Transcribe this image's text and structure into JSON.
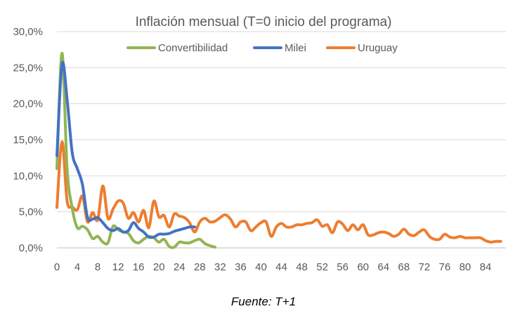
{
  "chart_data": {
    "type": "line",
    "title": "Inflación mensual (T=0 inicio del programa)",
    "xlabel": "",
    "ylabel": "",
    "xlim": [
      0,
      88
    ],
    "ylim": [
      0,
      30
    ],
    "x_ticks": [
      0,
      4,
      8,
      12,
      16,
      20,
      24,
      28,
      32,
      36,
      40,
      44,
      48,
      52,
      56,
      60,
      64,
      68,
      72,
      76,
      80,
      84
    ],
    "y_ticks": [
      {
        "value": 0,
        "label": "0,0%"
      },
      {
        "value": 5,
        "label": "5,0%"
      },
      {
        "value": 10,
        "label": "10,0%"
      },
      {
        "value": 15,
        "label": "15,0%"
      },
      {
        "value": 20,
        "label": "20,0%"
      },
      {
        "value": 25,
        "label": "25,0%"
      },
      {
        "value": 30,
        "label": "30,0%"
      }
    ],
    "grid": "horizontal",
    "legend": "top",
    "series": [
      {
        "name": "Convertibilidad",
        "color": "#92B553",
        "x": [
          0,
          1,
          2,
          3,
          4,
          5,
          6,
          7,
          8,
          9,
          10,
          11,
          12,
          13,
          14,
          15,
          16,
          17,
          18,
          19,
          20,
          21,
          22,
          23,
          24,
          25,
          26,
          27,
          28,
          29,
          30,
          31
        ],
        "y": [
          11.0,
          27.0,
          11.0,
          5.5,
          2.8,
          3.0,
          2.5,
          1.3,
          1.6,
          0.8,
          0.7,
          3.0,
          2.5,
          2.2,
          2.0,
          1.0,
          0.7,
          1.2,
          1.6,
          1.4,
          0.8,
          1.2,
          0.2,
          0.1,
          0.8,
          0.7,
          0.7,
          1.0,
          1.2,
          0.6,
          0.3,
          0.1
        ]
      },
      {
        "name": "Milei",
        "color": "#4472C4",
        "x": [
          0,
          1,
          2,
          3,
          4,
          5,
          6,
          7,
          8,
          9,
          10,
          11,
          12,
          13,
          14,
          15,
          16,
          17,
          18,
          19,
          20,
          21,
          22,
          23,
          24,
          25,
          26,
          27
        ],
        "y": [
          12.8,
          25.5,
          20.6,
          13.2,
          11.0,
          8.8,
          4.2,
          4.0,
          4.2,
          3.5,
          2.7,
          2.4,
          2.7,
          2.2,
          2.4,
          3.5,
          2.7,
          2.2,
          1.5,
          1.5,
          1.9,
          1.9,
          2.0,
          2.3,
          2.5,
          2.7,
          2.9,
          2.9
        ]
      },
      {
        "name": "Uruguay",
        "color": "#ED7D31",
        "x": [
          0,
          1,
          2,
          3,
          4,
          5,
          6,
          7,
          8,
          9,
          10,
          11,
          12,
          13,
          14,
          15,
          16,
          17,
          18,
          19,
          20,
          21,
          22,
          23,
          24,
          25,
          26,
          27,
          28,
          29,
          30,
          31,
          32,
          33,
          34,
          35,
          36,
          37,
          38,
          39,
          40,
          41,
          42,
          43,
          44,
          45,
          46,
          47,
          48,
          49,
          50,
          51,
          52,
          53,
          54,
          55,
          56,
          57,
          58,
          59,
          60,
          61,
          62,
          63,
          64,
          65,
          66,
          67,
          68,
          69,
          70,
          71,
          72,
          73,
          74,
          75,
          76,
          77,
          78,
          79,
          80,
          81,
          82,
          83,
          84,
          85,
          86,
          87
        ],
        "y": [
          5.6,
          14.7,
          6.5,
          5.7,
          5.3,
          7.2,
          3.6,
          4.9,
          3.9,
          8.6,
          4.1,
          5.4,
          6.5,
          6.2,
          4.1,
          4.9,
          3.6,
          5.2,
          2.8,
          6.5,
          4.3,
          4.5,
          2.9,
          4.7,
          4.4,
          4.2,
          3.5,
          2.2,
          3.6,
          4.1,
          3.6,
          3.7,
          4.2,
          4.6,
          4.0,
          2.9,
          3.6,
          3.6,
          2.4,
          2.9,
          3.5,
          3.6,
          1.6,
          2.9,
          3.4,
          2.9,
          2.9,
          3.2,
          3.2,
          3.4,
          3.5,
          3.9,
          3.0,
          3.2,
          2.1,
          3.6,
          3.3,
          2.4,
          3.2,
          2.5,
          3.2,
          1.8,
          1.8,
          2.1,
          2.2,
          2.0,
          1.6,
          1.9,
          2.6,
          1.9,
          1.7,
          2.2,
          2.5,
          1.6,
          1.2,
          1.2,
          1.9,
          1.5,
          1.4,
          1.6,
          1.4,
          1.4,
          1.4,
          1.4,
          1.0,
          0.8,
          0.9,
          0.9
        ]
      }
    ]
  },
  "footer": {
    "source": "Fuente: T+1"
  }
}
